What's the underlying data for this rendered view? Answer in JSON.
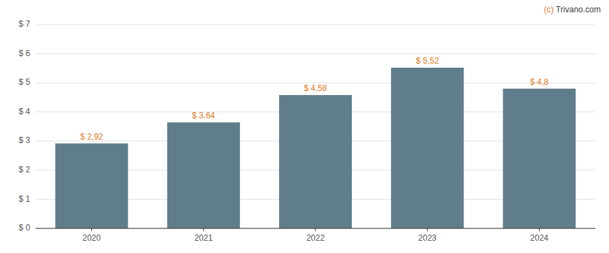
{
  "chart_data": {
    "type": "bar",
    "categories": [
      "2020",
      "2021",
      "2022",
      "2023",
      "2024"
    ],
    "values": [
      2.92,
      3.64,
      4.58,
      5.52,
      4.8
    ],
    "value_labels": [
      "$ 2,92",
      "$ 3,64",
      "$ 4,58",
      "$ 5,52",
      "$ 4,8"
    ],
    "data_labels": true,
    "color": "#607d8b",
    "ylim": [
      0,
      7
    ],
    "yticks": [
      {
        "value": 0,
        "label": "$ 0"
      },
      {
        "value": 1,
        "label": "$ 1"
      },
      {
        "value": 2,
        "label": "$ 2"
      },
      {
        "value": 3,
        "label": "$ 3"
      },
      {
        "value": 4,
        "label": "$ 4"
      },
      {
        "value": 5,
        "label": "$ 5"
      },
      {
        "value": 6,
        "label": "$ 6"
      },
      {
        "value": 7,
        "label": "$ 7"
      }
    ],
    "grid": true,
    "annotations": [
      {
        "text": "(c) ",
        "color": "#e07820"
      },
      {
        "text": "Trivano.com",
        "color": "#404040"
      }
    ]
  }
}
